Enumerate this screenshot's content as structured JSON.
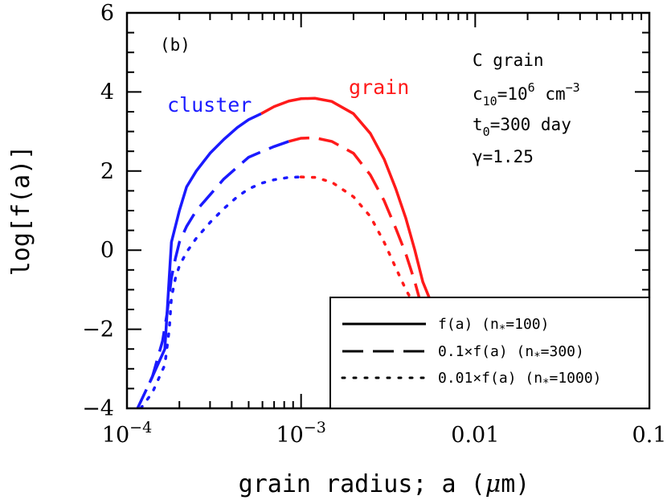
{
  "chart_data": {
    "type": "line",
    "panel_label": "(b)",
    "xlabel_parts": [
      "grain radius; a (",
      "μ",
      "m)"
    ],
    "ylabel": "log[f(a)]",
    "xscale": "log",
    "xlim": [
      0.0001,
      0.1
    ],
    "ylim": [
      -4,
      6
    ],
    "x_ticks": [
      {
        "value": 0.0001,
        "base": "10",
        "exp": "−4"
      },
      {
        "value": 0.001,
        "base": "10",
        "exp": "−3"
      },
      {
        "value": 0.01,
        "label": "0.01"
      },
      {
        "value": 0.1,
        "label": "0.1"
      }
    ],
    "y_ticks": [
      {
        "value": -4,
        "label": "−4"
      },
      {
        "value": -2,
        "label": "−2"
      },
      {
        "value": 0,
        "label": "0"
      },
      {
        "value": 2,
        "label": "2"
      },
      {
        "value": 4,
        "label": "4"
      },
      {
        "value": 6,
        "label": "6"
      }
    ],
    "annotations": {
      "grain_type": "C grain",
      "c10": {
        "base": "c",
        "sub": "10",
        "eq": "=10",
        "sup": "6",
        "unit": " cm",
        "unit_sup": "−3"
      },
      "t0": {
        "base": "t",
        "sub": "0",
        "rest": "=300 day"
      },
      "gamma": "γ=1.25"
    },
    "region_labels": {
      "cluster": {
        "text": "cluster",
        "color": "#1a1aff"
      },
      "grain": {
        "text": "grain",
        "color": "#ff1a1a"
      }
    },
    "colors": {
      "cluster": "#1a1aff",
      "grain": "#ff1a1a"
    },
    "series": [
      {
        "legend": {
          "pre": "f(a)  (n",
          "sub": "*",
          "post": "=100)"
        },
        "style": "solid",
        "cluster_points": [
          [
            0.000135,
            -3.35
          ],
          [
            0.000165,
            -2.5
          ],
          [
            0.00018,
            0.2
          ],
          [
            0.0002,
            1.0
          ],
          [
            0.00022,
            1.6
          ],
          [
            0.00025,
            2.0
          ],
          [
            0.0003,
            2.45
          ],
          [
            0.00036,
            2.8
          ],
          [
            0.00043,
            3.1
          ],
          [
            0.0005,
            3.3
          ],
          [
            0.00059,
            3.45
          ]
        ],
        "grain_points": [
          [
            0.00059,
            3.45
          ],
          [
            0.0007,
            3.63
          ],
          [
            0.00085,
            3.77
          ],
          [
            0.001,
            3.83
          ],
          [
            0.0012,
            3.84
          ],
          [
            0.0015,
            3.76
          ],
          [
            0.002,
            3.45
          ],
          [
            0.0025,
            2.95
          ],
          [
            0.003,
            2.3
          ],
          [
            0.0035,
            1.55
          ],
          [
            0.004,
            0.8
          ],
          [
            0.0045,
            0.0
          ],
          [
            0.005,
            -0.8
          ],
          [
            0.0055,
            -1.25
          ]
        ]
      },
      {
        "legend": {
          "pre": "0.1×f(a)  (n",
          "sub": "*",
          "post": "=300)"
        },
        "style": "dashed",
        "cluster_points": [
          [
            0.000115,
            -4.0
          ],
          [
            0.00014,
            -3.2
          ],
          [
            0.00016,
            -2.3
          ],
          [
            0.00017,
            -1.6
          ],
          [
            0.00018,
            -0.7
          ],
          [
            0.00019,
            -0.2
          ],
          [
            0.0002,
            0.2
          ],
          [
            0.00022,
            0.6
          ],
          [
            0.00025,
            1.0
          ],
          [
            0.0003,
            1.4
          ],
          [
            0.00036,
            1.8
          ],
          [
            0.00043,
            2.1
          ],
          [
            0.0005,
            2.35
          ],
          [
            0.0006,
            2.5
          ],
          [
            0.0007,
            2.62
          ],
          [
            0.00085,
            2.75
          ]
        ],
        "grain_points": [
          [
            0.00085,
            2.75
          ],
          [
            0.001,
            2.83
          ],
          [
            0.0012,
            2.84
          ],
          [
            0.0015,
            2.75
          ],
          [
            0.002,
            2.45
          ],
          [
            0.0025,
            1.9
          ],
          [
            0.003,
            1.25
          ],
          [
            0.0035,
            0.55
          ],
          [
            0.004,
            -0.1
          ],
          [
            0.0045,
            -0.8
          ],
          [
            0.0048,
            -1.25
          ]
        ]
      },
      {
        "legend": {
          "pre": "0.01×f(a)  (n",
          "sub": "*",
          "post": "=1000)"
        },
        "style": "dotted",
        "cluster_points": [
          [
            0.00012,
            -4.0
          ],
          [
            0.00014,
            -3.6
          ],
          [
            0.000165,
            -2.9
          ],
          [
            0.000175,
            -2.0
          ],
          [
            0.00018,
            -1.2
          ],
          [
            0.00019,
            -0.7
          ],
          [
            0.0002,
            -0.4
          ],
          [
            0.00022,
            -0.05
          ],
          [
            0.00025,
            0.3
          ],
          [
            0.0003,
            0.7
          ],
          [
            0.00036,
            1.05
          ],
          [
            0.00043,
            1.35
          ],
          [
            0.0005,
            1.55
          ],
          [
            0.0006,
            1.7
          ],
          [
            0.0007,
            1.78
          ],
          [
            0.00085,
            1.84
          ],
          [
            0.001,
            1.85
          ]
        ],
        "grain_points": [
          [
            0.001,
            1.85
          ],
          [
            0.0012,
            1.84
          ],
          [
            0.0015,
            1.72
          ],
          [
            0.002,
            1.35
          ],
          [
            0.0025,
            0.85
          ],
          [
            0.003,
            0.2
          ],
          [
            0.0035,
            -0.45
          ],
          [
            0.004,
            -1.0
          ],
          [
            0.0043,
            -1.25
          ]
        ]
      }
    ],
    "legend_position": "bottom-right"
  }
}
